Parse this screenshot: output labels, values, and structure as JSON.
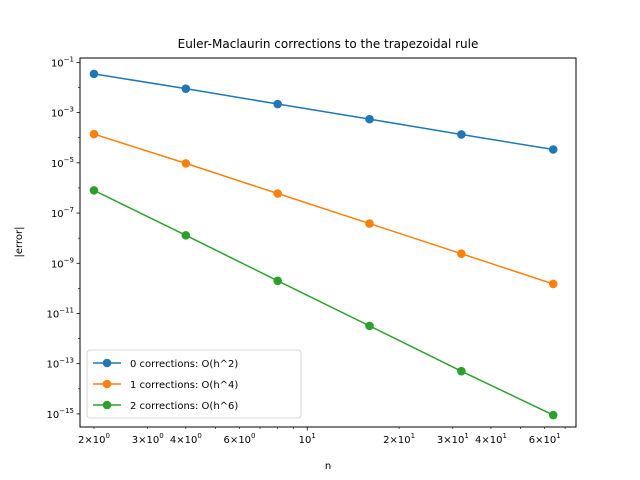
{
  "chart_data": {
    "type": "line",
    "title": "Euler-Maclaurin corrections to the trapezoidal rule",
    "xlabel": "n",
    "ylabel": "|error|",
    "xscale": "log",
    "yscale": "log",
    "xlim": [
      1.8,
      76
    ],
    "ylim": [
      3e-16,
      0.15
    ],
    "grid": false,
    "legend_position": "lower-left",
    "x": [
      2,
      4,
      8,
      16,
      32,
      64
    ],
    "series": [
      {
        "name": "0 corrections: O(h^2)",
        "color": "#1f77b4",
        "values": [
          0.035,
          0.009,
          0.0022,
          0.00055,
          0.000135,
          3.4e-05
        ]
      },
      {
        "name": "1 corrections: O(h^4)",
        "color": "#ff7f0e",
        "values": [
          0.00014,
          9.5e-06,
          6e-07,
          3.8e-08,
          2.4e-09,
          1.5e-10
        ]
      },
      {
        "name": "2 corrections: O(h^6)",
        "color": "#2ca02c",
        "values": [
          8e-07,
          1.3e-08,
          2e-10,
          3.2e-12,
          5e-14,
          9e-16
        ]
      }
    ],
    "y_ticks": [
      {
        "base": "10",
        "exp": "−1",
        "value": 0.1
      },
      {
        "base": "10",
        "exp": "−3",
        "value": 0.001
      },
      {
        "base": "10",
        "exp": "−5",
        "value": 1e-05
      },
      {
        "base": "10",
        "exp": "−7",
        "value": 1e-07
      },
      {
        "base": "10",
        "exp": "−9",
        "value": 1e-09
      },
      {
        "base": "10",
        "exp": "−11",
        "value": 1e-11
      },
      {
        "base": "10",
        "exp": "−13",
        "value": 1e-13
      },
      {
        "base": "10",
        "exp": "−15",
        "value": 1e-15
      }
    ],
    "x_ticks_major": [
      {
        "base": "10",
        "exp": "1",
        "value": 10
      }
    ],
    "x_ticks_minor": [
      {
        "mant": "2",
        "base": "10",
        "exp": "0",
        "value": 2
      },
      {
        "mant": "3",
        "base": "10",
        "exp": "0",
        "value": 3
      },
      {
        "mant": "4",
        "base": "10",
        "exp": "0",
        "value": 4
      },
      {
        "mant": "6",
        "base": "10",
        "exp": "0",
        "value": 6
      },
      {
        "mant": "2",
        "base": "10",
        "exp": "1",
        "value": 20
      },
      {
        "mant": "3",
        "base": "10",
        "exp": "1",
        "value": 30
      },
      {
        "mant": "4",
        "base": "10",
        "exp": "1",
        "value": 40
      },
      {
        "mant": "6",
        "base": "10",
        "exp": "1",
        "value": 60
      }
    ],
    "x_ticks_minor_unlabeled": [
      5,
      7,
      8,
      9,
      50,
      70
    ]
  }
}
